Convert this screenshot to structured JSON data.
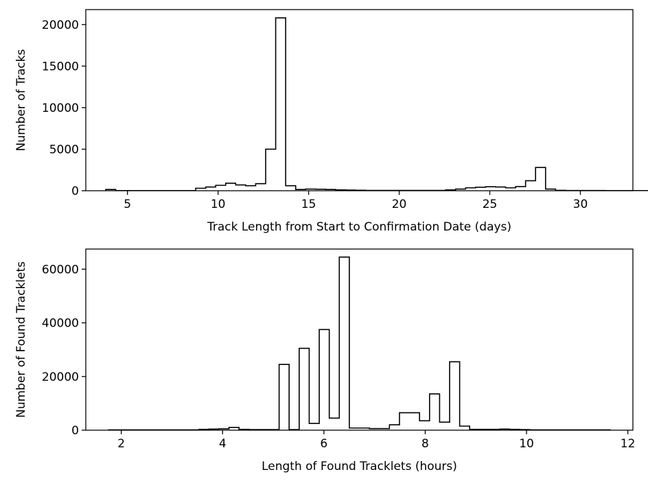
{
  "chart_data": [
    {
      "type": "histogram",
      "title": "",
      "xlabel": "Track Length from Start to Confirmation Date (days)",
      "ylabel": "Number of Tracks",
      "xlim": [
        2.7,
        32.9
      ],
      "ylim": [
        0,
        21800
      ],
      "xticks": [
        5,
        10,
        15,
        20,
        25,
        30
      ],
      "yticks": [
        0,
        5000,
        10000,
        15000,
        20000
      ],
      "grid": false,
      "legend": "none",
      "color": "#000000",
      "histtype": "step",
      "x_start": 3.8,
      "bin_width": 0.5518,
      "counts": [
        150,
        20,
        20,
        20,
        20,
        20,
        20,
        20,
        20,
        300,
        450,
        650,
        900,
        700,
        600,
        850,
        5000,
        20800,
        600,
        150,
        200,
        180,
        150,
        100,
        80,
        60,
        40,
        40,
        40,
        40,
        40,
        40,
        40,
        40,
        100,
        200,
        350,
        420,
        480,
        450,
        350,
        500,
        1200,
        2800,
        200,
        50,
        30,
        30,
        30,
        30,
        20,
        20,
        20,
        20,
        20
      ]
    },
    {
      "type": "histogram",
      "title": "",
      "xlabel": "Length of Found Tracklets (hours)",
      "ylabel": "Number of Found Tracklets",
      "xlim": [
        1.3,
        12.1
      ],
      "ylim": [
        0,
        67500
      ],
      "xticks": [
        2,
        4,
        6,
        8,
        10,
        12
      ],
      "yticks": [
        0,
        20000,
        40000,
        60000
      ],
      "grid": false,
      "legend": "none",
      "color": "#000000",
      "histtype": "step",
      "x_start": 1.75,
      "bin_width": 0.198,
      "counts": [
        100,
        100,
        100,
        100,
        100,
        100,
        100,
        100,
        100,
        300,
        400,
        500,
        1000,
        300,
        200,
        200,
        200,
        24500,
        200,
        30500,
        2500,
        37500,
        4500,
        64500,
        800,
        800,
        600,
        600,
        2000,
        6500,
        6500,
        3500,
        13500,
        3000,
        25500,
        1500,
        300,
        300,
        300,
        400,
        300,
        200,
        100,
        100,
        100,
        100,
        100,
        100,
        100,
        100
      ]
    }
  ]
}
